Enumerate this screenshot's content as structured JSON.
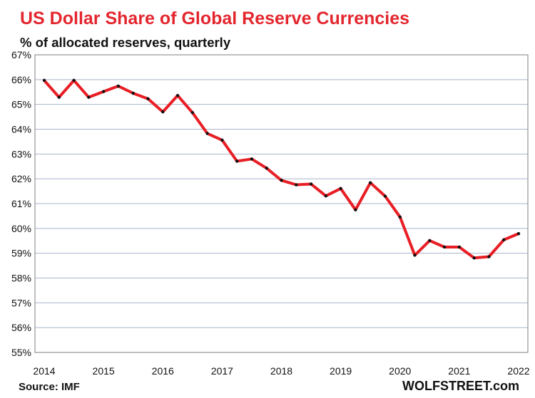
{
  "chart_data": {
    "type": "line",
    "title": "US Dollar Share of Global  Reserve Currencies",
    "subtitle": "% of allocated reserves, quarterly",
    "ylim": [
      55,
      67
    ],
    "xlim": [
      2014,
      2022
    ],
    "yticks": [
      55,
      56,
      57,
      58,
      59,
      60,
      61,
      62,
      63,
      64,
      65,
      66,
      67
    ],
    "ytick_labels": [
      "55%",
      "56%",
      "57%",
      "58%",
      "59%",
      "60%",
      "61%",
      "62%",
      "63%",
      "64%",
      "65%",
      "66%",
      "67%"
    ],
    "xtick_labels": [
      "2014",
      "2015",
      "2016",
      "2017",
      "2018",
      "2019",
      "2020",
      "2021",
      "2022"
    ],
    "grid": "horizontal",
    "series": [
      {
        "color": "#e81e25",
        "marker_color": "#111111",
        "x": [
          2014.0,
          2014.25,
          2014.5,
          2014.75,
          2015.0,
          2015.25,
          2015.5,
          2015.75,
          2016.0,
          2016.25,
          2016.5,
          2016.75,
          2017.0,
          2017.25,
          2017.5,
          2017.75,
          2018.0,
          2018.25,
          2018.5,
          2018.75,
          2019.0,
          2019.25,
          2019.5,
          2019.75,
          2020.0,
          2020.25,
          2020.5,
          2020.75,
          2021.0,
          2021.25,
          2021.5,
          2021.75,
          2022.0
        ],
        "values": [
          65.97,
          65.29,
          65.97,
          65.29,
          65.52,
          65.74,
          65.45,
          65.23,
          64.7,
          65.36,
          64.67,
          63.83,
          63.56,
          62.71,
          62.8,
          62.43,
          61.94,
          61.76,
          61.79,
          61.31,
          61.61,
          60.75,
          61.84,
          61.3,
          60.46,
          58.92,
          59.51,
          59.25,
          59.25,
          58.81,
          58.86,
          59.54,
          59.79
        ]
      }
    ]
  },
  "source": "Source: IMF",
  "brand": "WOLFSTREET.com"
}
